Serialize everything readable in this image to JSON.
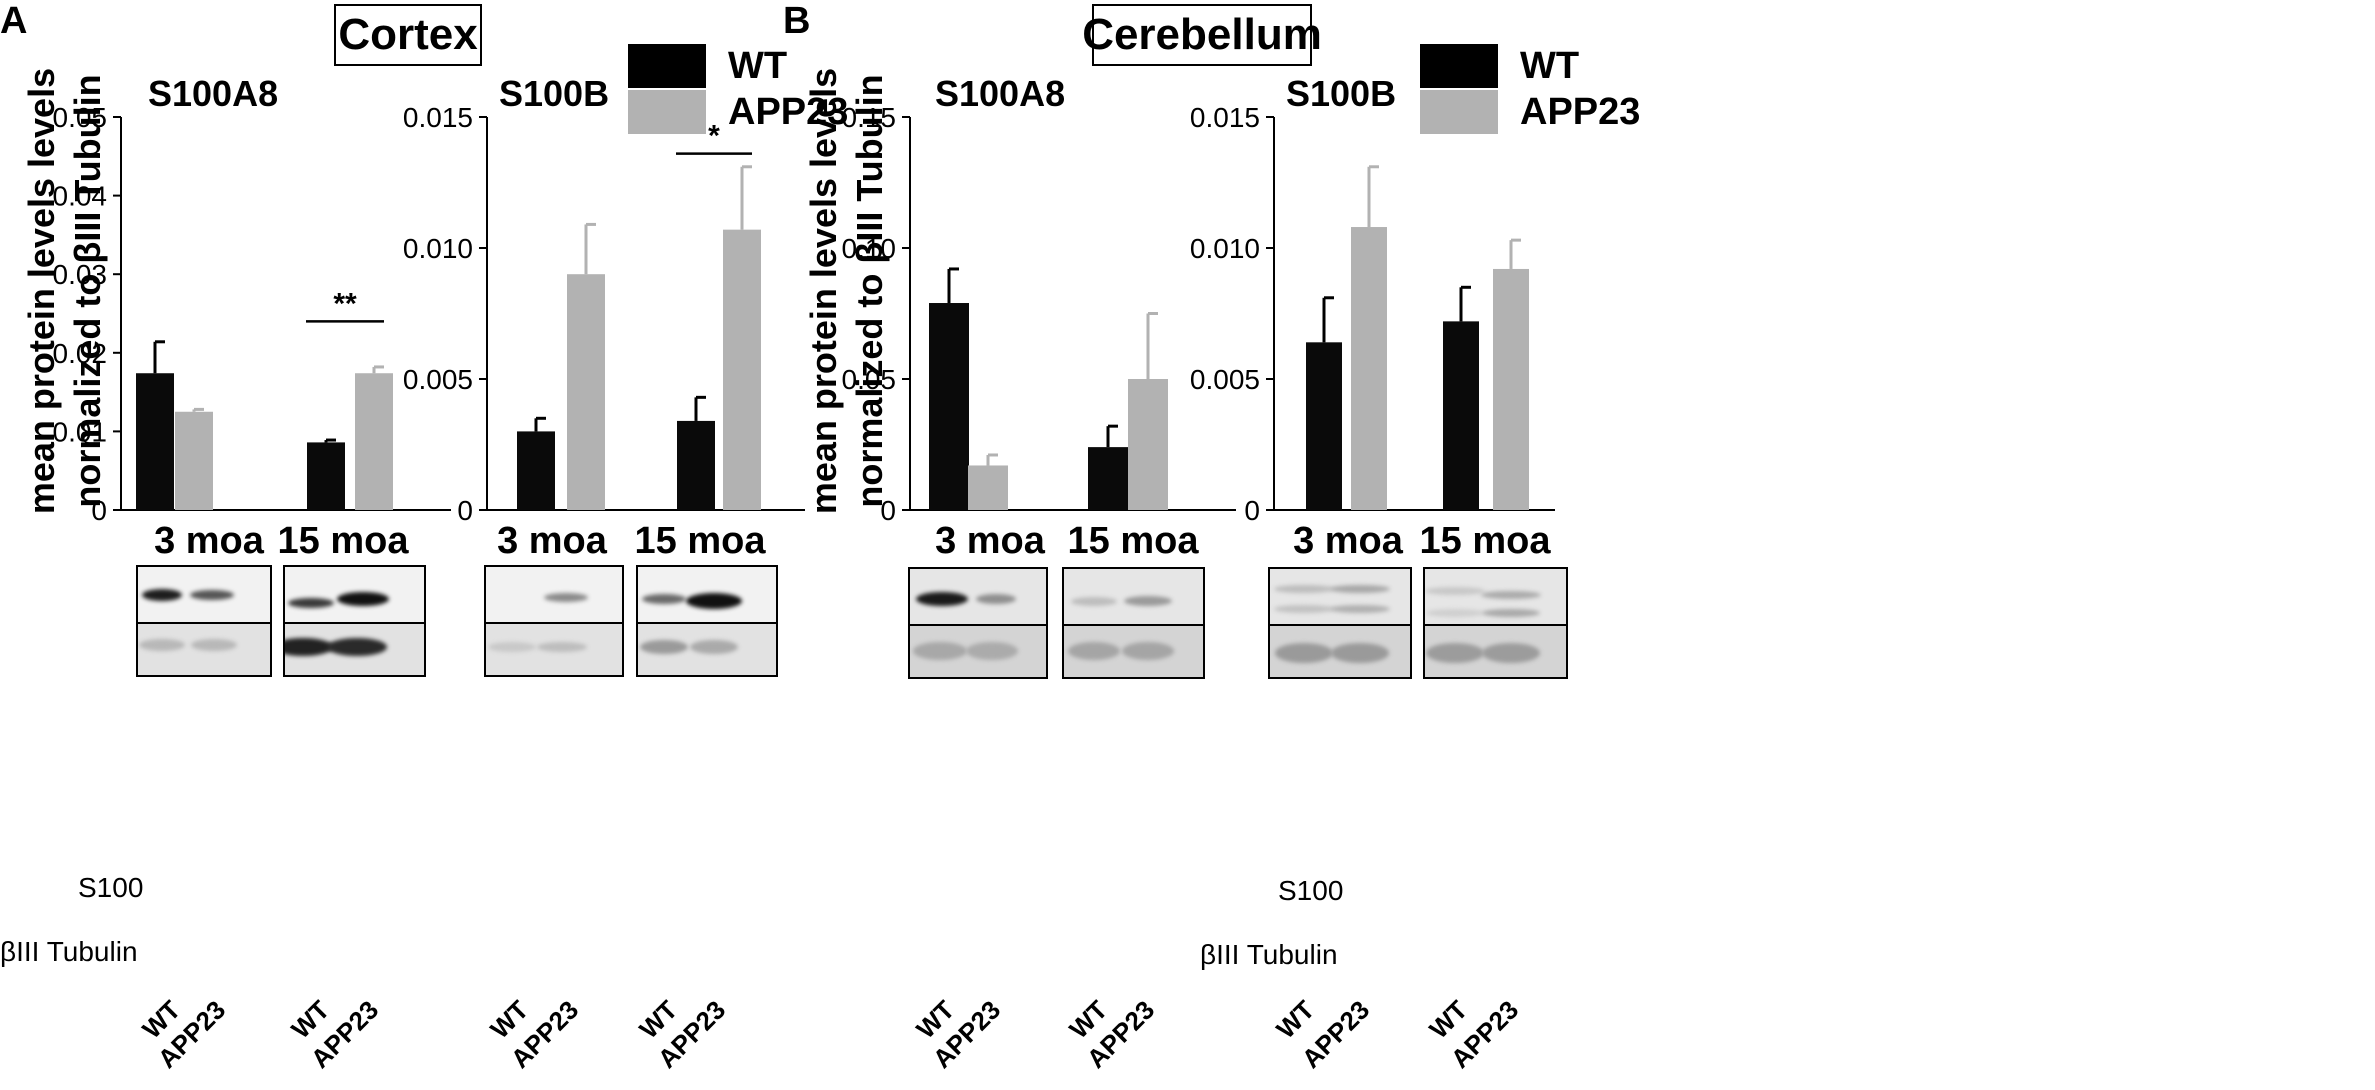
{
  "panels": [
    {
      "letter": "A",
      "region": "Cortex"
    },
    {
      "letter": "B",
      "region": "Cerebellum"
    }
  ],
  "legend": {
    "items": [
      {
        "label": "WT",
        "color": "#000000"
      },
      {
        "label": "APP23",
        "color": "#b2b2b2"
      }
    ]
  },
  "y_axis_label": [
    "mean protein levels levels",
    "normalized to βIII Tubulin"
  ],
  "blot_rows": {
    "top": "S100",
    "bottom": "βIII Tubulin"
  },
  "lane_labels": [
    "WT",
    "APP23"
  ],
  "chart_data": [
    {
      "type": "bar",
      "panel": "A",
      "title": "S100A8",
      "categories": [
        "3 moa",
        "15 moa"
      ],
      "ylabel": "mean protein levels levels normalized to βIII Tubulin",
      "ylim": [
        0,
        0.05
      ],
      "ytick_labels": [
        "0",
        "0.01",
        "0.02",
        "0.03",
        "0.04",
        "0.05"
      ],
      "ytick_values": [
        0,
        0.01,
        0.02,
        0.03,
        0.04,
        0.05
      ],
      "series": [
        {
          "name": "WT",
          "color": "#0a0a0a",
          "err_color": "#000000",
          "values": [
            0.0174,
            0.0086
          ],
          "errors": [
            0.004,
            0.0003
          ]
        },
        {
          "name": "APP23",
          "color": "#b2b2b2",
          "err_color": "#b2b2b2",
          "values": [
            0.0125,
            0.0174
          ],
          "errors": [
            0.0003,
            0.0008
          ]
        }
      ],
      "significance": [
        {
          "category": "15 moa",
          "label": "**",
          "y": 0.024
        }
      ]
    },
    {
      "type": "bar",
      "panel": "A",
      "title": "S100B",
      "categories": [
        "3 moa",
        "15 moa"
      ],
      "ylim": [
        0,
        0.015
      ],
      "ytick_labels": [
        "0",
        "0.005",
        "0.010",
        "0.015"
      ],
      "ytick_values": [
        0,
        0.005,
        0.01,
        0.015
      ],
      "series": [
        {
          "name": "WT",
          "color": "#0a0a0a",
          "err_color": "#000000",
          "values": [
            0.003,
            0.0034
          ],
          "errors": [
            0.0005,
            0.0009
          ]
        },
        {
          "name": "APP23",
          "color": "#b2b2b2",
          "err_color": "#b2b2b2",
          "values": [
            0.009,
            0.0107
          ],
          "errors": [
            0.0019,
            0.0024
          ]
        }
      ],
      "significance": [
        {
          "category": "15 moa",
          "label": "*",
          "y": 0.0136
        }
      ]
    },
    {
      "type": "bar",
      "panel": "B",
      "title": "S100A8",
      "categories": [
        "3 moa",
        "15 moa"
      ],
      "ylabel": "mean protein levels levels normalized to βIII Tubulin",
      "ylim": [
        0,
        0.15
      ],
      "ytick_labels": [
        "0",
        "0.05",
        "0.10",
        "0.15"
      ],
      "ytick_values": [
        0,
        0.05,
        0.1,
        0.15
      ],
      "series": [
        {
          "name": "WT",
          "color": "#0a0a0a",
          "err_color": "#000000",
          "values": [
            0.079,
            0.024
          ],
          "errors": [
            0.013,
            0.008
          ]
        },
        {
          "name": "APP23",
          "color": "#b2b2b2",
          "err_color": "#b2b2b2",
          "values": [
            0.017,
            0.05
          ],
          "errors": [
            0.004,
            0.025
          ]
        }
      ],
      "significance": []
    },
    {
      "type": "bar",
      "panel": "B",
      "title": "S100B",
      "categories": [
        "3 moa",
        "15 moa"
      ],
      "ylim": [
        0,
        0.015
      ],
      "ytick_labels": [
        "0",
        "0.005",
        "0.010",
        "0.015"
      ],
      "ytick_values": [
        0,
        0.005,
        0.01,
        0.015
      ],
      "series": [
        {
          "name": "WT",
          "color": "#0a0a0a",
          "err_color": "#000000",
          "values": [
            0.0064,
            0.0072
          ],
          "errors": [
            0.0017,
            0.0013
          ]
        },
        {
          "name": "APP23",
          "color": "#b2b2b2",
          "err_color": "#b2b2b2",
          "values": [
            0.0108,
            0.0092
          ],
          "errors": [
            0.0023,
            0.0011
          ]
        }
      ],
      "significance": []
    }
  ]
}
